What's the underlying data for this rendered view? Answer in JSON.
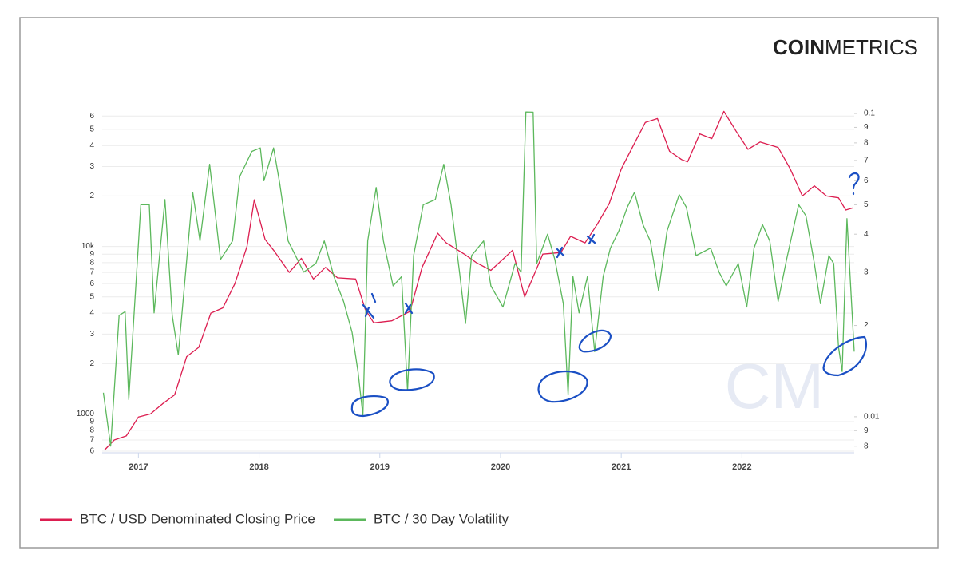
{
  "chart_data": {
    "type": "line",
    "logo": {
      "bold": "COIN",
      "light": "METRICS"
    },
    "watermark": "CM",
    "log_scale": true,
    "grid": true,
    "legend": "bottom-left",
    "xlim": [
      2016.7,
      2022.93
    ],
    "xticks": [
      2017,
      2018,
      2019,
      2020,
      2021,
      2022
    ],
    "ylim": [
      600,
      65000
    ],
    "yticks": [
      {
        "value": 600,
        "label": "6"
      },
      {
        "value": 700,
        "label": "7"
      },
      {
        "value": 800,
        "label": "8"
      },
      {
        "value": 900,
        "label": "9"
      },
      1000,
      {
        "value": 2000,
        "label": "2"
      },
      {
        "value": 3000,
        "label": "3"
      },
      {
        "value": 4000,
        "label": "4"
      },
      {
        "value": 5000,
        "label": "5"
      },
      {
        "value": 6000,
        "label": "6"
      },
      {
        "value": 7000,
        "label": "7"
      },
      {
        "value": 8000,
        "label": "8"
      },
      {
        "value": 9000,
        "label": "9"
      },
      {
        "value": 10000,
        "label": "10k"
      },
      {
        "value": 20000,
        "label": "2"
      },
      {
        "value": 30000,
        "label": "3"
      },
      {
        "value": 40000,
        "label": "4"
      },
      {
        "value": 50000,
        "label": "5"
      },
      {
        "value": 60000,
        "label": "6"
      }
    ],
    "y2lim": [
      0.0077,
      0.1025
    ],
    "y2ticks": [
      {
        "value": 0.008,
        "label": "8"
      },
      {
        "value": 0.009,
        "label": "9"
      },
      0.01,
      {
        "value": 0.02,
        "label": "2"
      },
      {
        "value": 0.03,
        "label": "3"
      },
      {
        "value": 0.04,
        "label": "4"
      },
      {
        "value": 0.05,
        "label": "5"
      },
      {
        "value": 0.06,
        "label": "6"
      },
      {
        "value": 0.07,
        "label": "7"
      },
      {
        "value": 0.08,
        "label": "8"
      },
      {
        "value": 0.09,
        "label": "9"
      },
      0.1
    ],
    "series": [
      {
        "name": "BTC / USD Denominated Closing Price",
        "color": "#dc1e50",
        "axis": "y",
        "x": [
          2016.72,
          2016.8,
          2016.9,
          2017.0,
          2017.1,
          2017.2,
          2017.3,
          2017.4,
          2017.5,
          2017.6,
          2017.7,
          2017.8,
          2017.9,
          2017.96,
          2018.05,
          2018.12,
          2018.25,
          2018.35,
          2018.45,
          2018.55,
          2018.65,
          2018.8,
          2018.88,
          2018.95,
          2019.1,
          2019.25,
          2019.35,
          2019.48,
          2019.55,
          2019.7,
          2019.8,
          2019.92,
          2020.1,
          2020.2,
          2020.35,
          2020.5,
          2020.58,
          2020.7,
          2020.8,
          2020.9,
          2021.0,
          2021.1,
          2021.2,
          2021.3,
          2021.4,
          2021.5,
          2021.55,
          2021.65,
          2021.75,
          2021.85,
          2021.95,
          2022.05,
          2022.15,
          2022.3,
          2022.4,
          2022.5,
          2022.6,
          2022.7,
          2022.8,
          2022.86,
          2022.92
        ],
        "values": [
          610,
          700,
          740,
          960,
          1000,
          1150,
          1300,
          2200,
          2500,
          4000,
          4300,
          6000,
          10000,
          19000,
          11000,
          9500,
          7000,
          8500,
          6400,
          7500,
          6500,
          6400,
          4200,
          3500,
          3600,
          4100,
          7500,
          12000,
          10500,
          9000,
          8000,
          7200,
          9500,
          5000,
          9000,
          9200,
          11500,
          10500,
          13500,
          18000,
          29000,
          40000,
          55000,
          58000,
          37000,
          33000,
          32000,
          47000,
          44000,
          64000,
          49000,
          38000,
          42000,
          39000,
          29000,
          20000,
          23000,
          20000,
          19500,
          16500,
          17000
        ]
      },
      {
        "name": "BTC / 30 Day Volatility",
        "color": "#5cb85c",
        "axis": "y2",
        "x": [
          2016.71,
          2016.77,
          2016.84,
          2016.89,
          2016.92,
          2017.02,
          2017.09,
          2017.13,
          2017.22,
          2017.28,
          2017.33,
          2017.45,
          2017.51,
          2017.59,
          2017.68,
          2017.78,
          2017.84,
          2017.94,
          2018.01,
          2018.04,
          2018.12,
          2018.17,
          2018.24,
          2018.37,
          2018.47,
          2018.54,
          2018.62,
          2018.7,
          2018.77,
          2018.82,
          2018.86,
          2018.9,
          2018.97,
          2019.03,
          2019.11,
          2019.18,
          2019.23,
          2019.28,
          2019.36,
          2019.46,
          2019.53,
          2019.59,
          2019.66,
          2019.71,
          2019.76,
          2019.86,
          2019.92,
          2020.02,
          2020.12,
          2020.17,
          2020.21,
          2020.27,
          2020.3,
          2020.39,
          2020.45,
          2020.52,
          2020.56,
          2020.6,
          2020.65,
          2020.72,
          2020.78,
          2020.85,
          2020.91,
          2020.98,
          2021.05,
          2021.11,
          2021.18,
          2021.24,
          2021.31,
          2021.38,
          2021.48,
          2021.54,
          2021.62,
          2021.74,
          2021.81,
          2021.87,
          2021.97,
          2022.04,
          2022.1,
          2022.17,
          2022.23,
          2022.3,
          2022.37,
          2022.47,
          2022.53,
          2022.6,
          2022.65,
          2022.72,
          2022.76,
          2022.8,
          2022.83,
          2022.87,
          2022.93
        ],
        "values": [
          0.012,
          0.008,
          0.0216,
          0.0222,
          0.0114,
          0.05,
          0.05,
          0.022,
          0.052,
          0.0216,
          0.016,
          0.055,
          0.038,
          0.068,
          0.033,
          0.038,
          0.062,
          0.075,
          0.077,
          0.06,
          0.077,
          0.059,
          0.038,
          0.03,
          0.032,
          0.038,
          0.029,
          0.024,
          0.019,
          0.014,
          0.0101,
          0.038,
          0.057,
          0.038,
          0.027,
          0.029,
          0.0122,
          0.034,
          0.05,
          0.052,
          0.068,
          0.05,
          0.03,
          0.0203,
          0.034,
          0.038,
          0.027,
          0.023,
          0.032,
          0.03,
          0.1012,
          0.101,
          0.032,
          0.04,
          0.033,
          0.0236,
          0.0118,
          0.029,
          0.022,
          0.029,
          0.0164,
          0.029,
          0.036,
          0.041,
          0.049,
          0.055,
          0.043,
          0.038,
          0.026,
          0.041,
          0.054,
          0.049,
          0.034,
          0.036,
          0.03,
          0.027,
          0.032,
          0.023,
          0.036,
          0.043,
          0.038,
          0.024,
          0.033,
          0.05,
          0.046,
          0.032,
          0.0236,
          0.034,
          0.032,
          0.017,
          0.0141,
          0.045,
          0.0164
        ]
      }
    ]
  }
}
